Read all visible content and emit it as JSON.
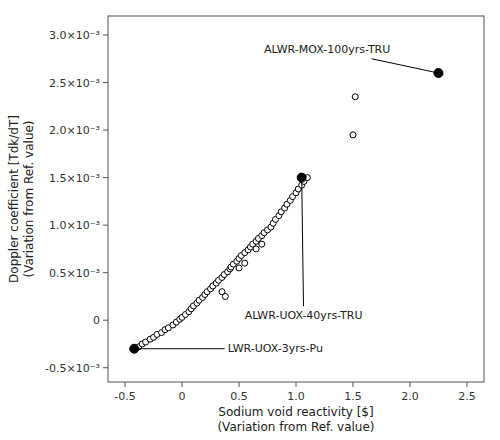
{
  "chart_data": {
    "type": "scatter",
    "xlabel": "Sodium void reactivity [$]\n(Variation from Ref. value)",
    "ylabel": "Doppler coefficient [Tdk/dT]\n(Variation from Ref. value)",
    "series": [
      {
        "marker": "open-circle",
        "color": "black",
        "x": [
          -0.42,
          -0.38,
          -0.35,
          -0.32,
          -0.28,
          -0.25,
          -0.22,
          -0.18,
          -0.15,
          -0.12,
          -0.08,
          -0.05,
          -0.02,
          0.0,
          0.03,
          0.06,
          0.08,
          0.1,
          0.13,
          0.15,
          0.18,
          0.2,
          0.22,
          0.25,
          0.27,
          0.3,
          0.32,
          0.35,
          0.37,
          0.4,
          0.42,
          0.43,
          0.45,
          0.48,
          0.5,
          0.52,
          0.55,
          0.58,
          0.6,
          0.62,
          0.65,
          0.67,
          0.7,
          0.72,
          0.35,
          0.38,
          0.75,
          0.78,
          0.8,
          0.82,
          0.85,
          0.87,
          0.5,
          0.55,
          0.9,
          0.92,
          0.95,
          0.97,
          0.65,
          0.7,
          1.0,
          1.02,
          1.05,
          1.07,
          1.1,
          1.52,
          1.5
        ],
        "values": [
          -0.0003,
          -0.00028,
          -0.00025,
          -0.00023,
          -0.0002,
          -0.00018,
          -0.00015,
          -0.00013,
          -0.0001,
          -8e-05,
          -5e-05,
          -2e-05,
          1e-05,
          3e-05,
          6e-05,
          9e-05,
          0.00012,
          0.00015,
          0.00018,
          0.00021,
          0.00024,
          0.00027,
          0.0003,
          0.00033,
          0.00036,
          0.00039,
          0.00042,
          0.00045,
          0.00048,
          0.00051,
          0.00054,
          0.00056,
          0.00059,
          0.00062,
          0.00065,
          0.00068,
          0.00071,
          0.00074,
          0.00077,
          0.0008,
          0.00083,
          0.00086,
          0.00089,
          0.00092,
          0.0003,
          0.00025,
          0.00095,
          0.00098,
          0.00102,
          0.00106,
          0.0011,
          0.00114,
          0.00055,
          0.0006,
          0.00118,
          0.00122,
          0.00126,
          0.0013,
          0.00075,
          0.0008,
          0.00134,
          0.00138,
          0.00142,
          0.00146,
          0.0015,
          0.00235,
          0.00195
        ]
      }
    ],
    "annotations": [
      {
        "text": "LWR-UOX-3yrs-Pu",
        "x": -0.42,
        "y": -0.0003,
        "text_x": 0.4,
        "text_y": -0.0003,
        "color": "black"
      },
      {
        "text": "ALWR-UOX-40yrs-TRU",
        "x": 1.05,
        "y": 0.0015,
        "text_x": 0.55,
        "text_y": 5e-05,
        "color": "black"
      },
      {
        "text": "ALWR-MOX-100yrs-TRU",
        "x": 2.25,
        "y": 0.0026,
        "text_x": 0.72,
        "text_y": 0.00285,
        "color": "black"
      }
    ],
    "xlim": [
      -0.65,
      2.65
    ],
    "ylim": [
      -0.00065,
      0.0032
    ],
    "xticks": [
      -0.5,
      0,
      0.5,
      {
        "value": 1.0,
        "label": "1.0"
      },
      1.5,
      {
        "value": 2.0,
        "label": "2.0"
      },
      2.5
    ],
    "yticks": [
      {
        "value": -0.0005,
        "label": "-0.5×10⁻³"
      },
      0,
      {
        "value": 0.0005,
        "label": "0.5×10⁻³"
      },
      {
        "value": 0.001,
        "label": "1.0×10⁻³"
      },
      {
        "value": 0.0015,
        "label": "1.5×10⁻³"
      },
      {
        "value": 0.002,
        "label": "2.0×10⁻³"
      },
      {
        "value": 0.0025,
        "label": "2.5×10⁻³"
      },
      {
        "value": 0.003,
        "label": "3.0×10⁻³"
      }
    ],
    "grid": false
  }
}
